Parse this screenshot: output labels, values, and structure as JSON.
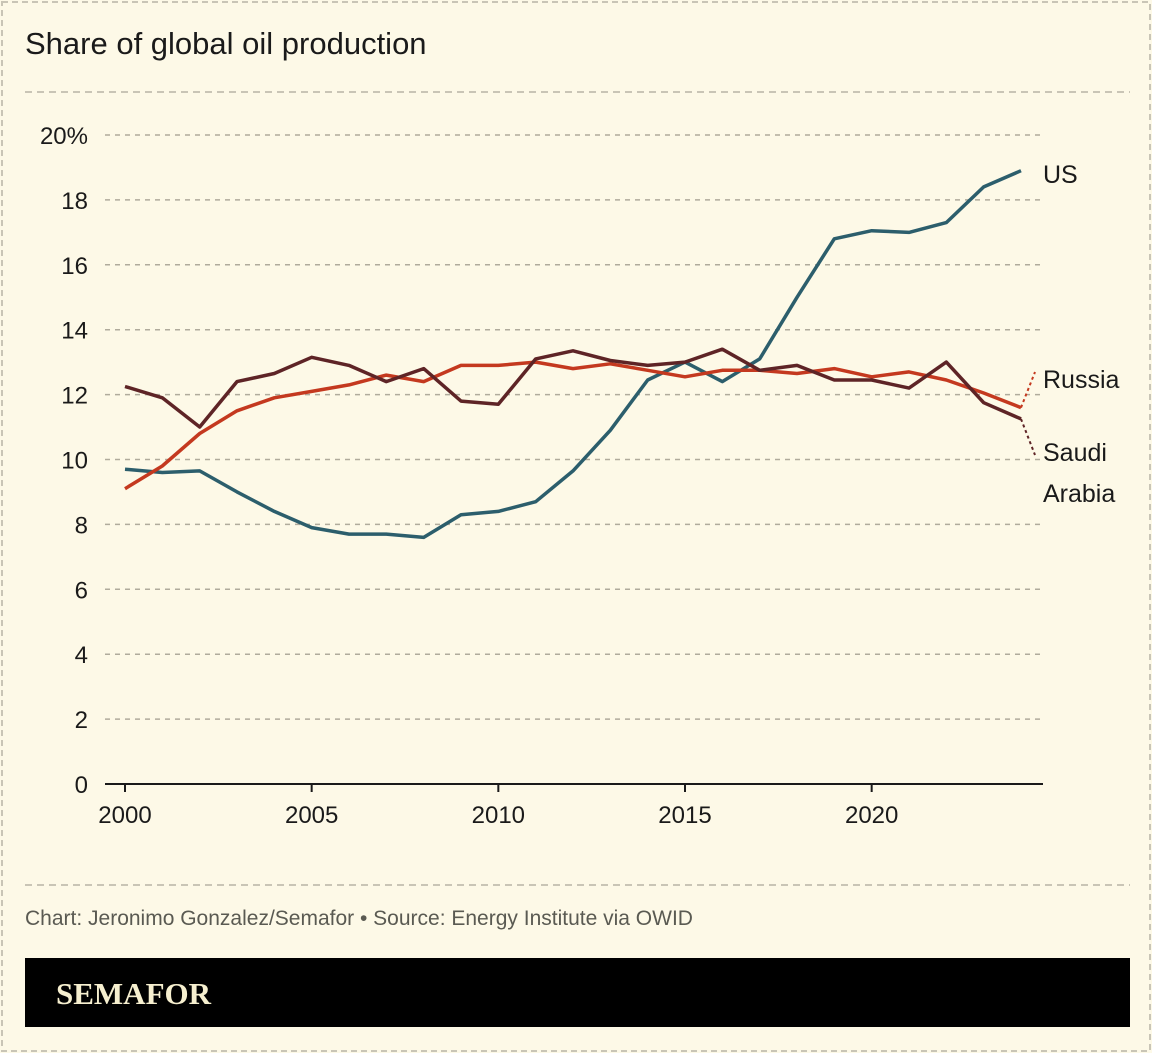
{
  "chart_data": {
    "type": "line",
    "title": "Share of global oil production",
    "xlabel": "",
    "ylabel": "",
    "xlim": [
      2000,
      2024
    ],
    "ylim": [
      0,
      20
    ],
    "grid": true,
    "x_ticks": [
      2000,
      2005,
      2010,
      2015,
      2020
    ],
    "x_tick_labels": [
      "2000",
      "2005",
      "2010",
      "2015",
      "2020"
    ],
    "y_ticks": [
      0,
      2,
      4,
      6,
      8,
      10,
      12,
      14,
      16,
      18,
      20
    ],
    "y_tick_labels": [
      "0",
      "2",
      "4",
      "6",
      "8",
      "10",
      "12",
      "14",
      "16",
      "18",
      "20%"
    ],
    "x": [
      2000,
      2001,
      2002,
      2003,
      2004,
      2005,
      2006,
      2007,
      2008,
      2009,
      2010,
      2011,
      2012,
      2013,
      2014,
      2015,
      2016,
      2017,
      2018,
      2019,
      2020,
      2021,
      2022,
      2023,
      2024
    ],
    "series": [
      {
        "name": "US",
        "label_lines": [
          "US"
        ],
        "color": "#2c5e6c",
        "values": [
          9.7,
          9.6,
          9.65,
          9.0,
          8.4,
          7.9,
          7.7,
          7.7,
          7.6,
          8.3,
          8.4,
          8.7,
          9.65,
          10.9,
          12.45,
          13.0,
          12.4,
          13.1,
          15.0,
          16.8,
          17.05,
          17.0,
          17.3,
          18.4,
          18.9
        ]
      },
      {
        "name": "Russia",
        "label_lines": [
          "Russia"
        ],
        "color": "#c4391f",
        "values": [
          9.1,
          9.8,
          10.8,
          11.5,
          11.9,
          12.1,
          12.3,
          12.6,
          12.4,
          12.9,
          12.9,
          13.0,
          12.8,
          12.95,
          12.75,
          12.55,
          12.75,
          12.75,
          12.65,
          12.8,
          12.55,
          12.7,
          12.45,
          12.05,
          11.6
        ]
      },
      {
        "name": "Saudi Arabia",
        "label_lines": [
          "Saudi",
          "Arabia"
        ],
        "color": "#5e2426",
        "values": [
          12.25,
          11.9,
          11.0,
          12.4,
          12.65,
          13.15,
          12.9,
          12.4,
          12.8,
          11.8,
          11.7,
          13.1,
          13.35,
          13.05,
          12.9,
          13.0,
          13.4,
          12.75,
          12.9,
          12.45,
          12.45,
          12.2,
          13.0,
          11.75,
          11.25
        ]
      }
    ],
    "source": "Chart: Jeronimo Gonzalez/Semafor • Source: Energy Institute via OWID"
  },
  "branding": {
    "logo": "SEMAFOR"
  },
  "colors": {
    "background": "#fdf9e7",
    "grid": "#b0ab9c",
    "footer_bar": "#000000"
  }
}
